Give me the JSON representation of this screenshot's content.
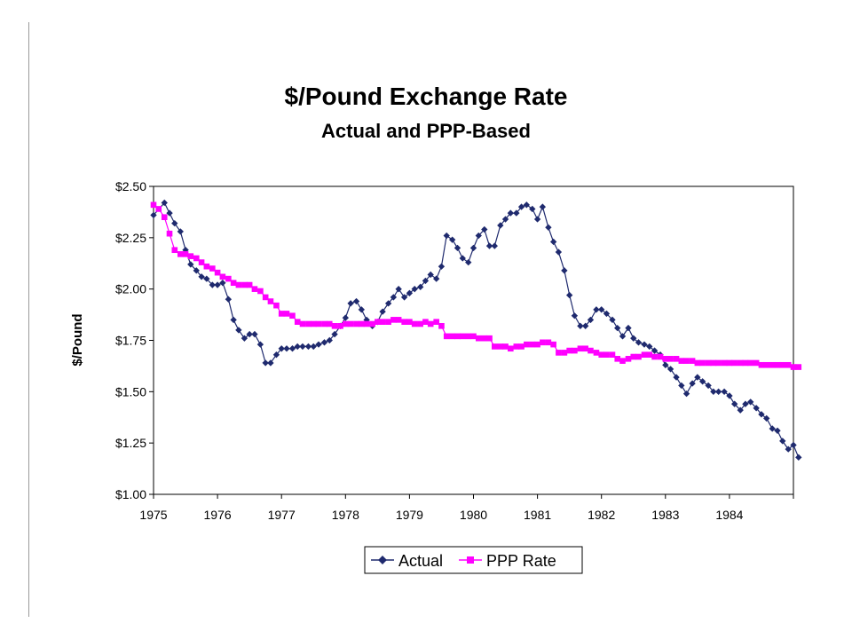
{
  "chart_data": {
    "type": "line",
    "title": "$/Pound Exchange Rate",
    "subtitle": "Actual and PPP-Based",
    "xlabel": "",
    "ylabel": "$/Pound",
    "xlim": [
      1975,
      1985
    ],
    "ylim": [
      1.0,
      2.5
    ],
    "x_ticks": [
      "1975",
      "1976",
      "1977",
      "1978",
      "1979",
      "1980",
      "1981",
      "1982",
      "1983",
      "1984"
    ],
    "y_ticks": [
      "$1.00",
      "$1.25",
      "$1.50",
      "$1.75",
      "$2.00",
      "$2.25",
      "$2.50"
    ],
    "grid": false,
    "legend": "bottom",
    "series": [
      {
        "name": "Actual",
        "color": "#1f2a6e",
        "marker": "diamond",
        "points": [
          [
            1975.0,
            2.36
          ],
          [
            1975.17,
            2.42
          ],
          [
            1975.25,
            2.37
          ],
          [
            1975.33,
            2.32
          ],
          [
            1975.42,
            2.28
          ],
          [
            1975.5,
            2.19
          ],
          [
            1975.58,
            2.12
          ],
          [
            1975.67,
            2.09
          ],
          [
            1975.75,
            2.06
          ],
          [
            1975.83,
            2.05
          ],
          [
            1975.92,
            2.02
          ],
          [
            1976.0,
            2.02
          ],
          [
            1976.08,
            2.03
          ],
          [
            1976.17,
            1.95
          ],
          [
            1976.25,
            1.85
          ],
          [
            1976.33,
            1.8
          ],
          [
            1976.42,
            1.76
          ],
          [
            1976.5,
            1.78
          ],
          [
            1976.58,
            1.78
          ],
          [
            1976.67,
            1.73
          ],
          [
            1976.75,
            1.64
          ],
          [
            1976.83,
            1.64
          ],
          [
            1976.92,
            1.68
          ],
          [
            1977.0,
            1.71
          ],
          [
            1977.08,
            1.71
          ],
          [
            1977.17,
            1.71
          ],
          [
            1977.25,
            1.72
          ],
          [
            1977.33,
            1.72
          ],
          [
            1977.42,
            1.72
          ],
          [
            1977.5,
            1.72
          ],
          [
            1977.58,
            1.73
          ],
          [
            1977.67,
            1.74
          ],
          [
            1977.75,
            1.75
          ],
          [
            1977.83,
            1.78
          ],
          [
            1977.92,
            1.82
          ],
          [
            1978.0,
            1.86
          ],
          [
            1978.08,
            1.93
          ],
          [
            1978.17,
            1.94
          ],
          [
            1978.25,
            1.9
          ],
          [
            1978.33,
            1.85
          ],
          [
            1978.42,
            1.82
          ],
          [
            1978.5,
            1.84
          ],
          [
            1978.58,
            1.89
          ],
          [
            1978.67,
            1.93
          ],
          [
            1978.75,
            1.96
          ],
          [
            1978.83,
            2.0
          ],
          [
            1978.92,
            1.96
          ],
          [
            1979.0,
            1.98
          ],
          [
            1979.08,
            2.0
          ],
          [
            1979.17,
            2.01
          ],
          [
            1979.25,
            2.04
          ],
          [
            1979.33,
            2.07
          ],
          [
            1979.42,
            2.05
          ],
          [
            1979.5,
            2.11
          ],
          [
            1979.58,
            2.26
          ],
          [
            1979.67,
            2.24
          ],
          [
            1979.75,
            2.2
          ],
          [
            1979.83,
            2.15
          ],
          [
            1979.92,
            2.13
          ],
          [
            1980.0,
            2.2
          ],
          [
            1980.08,
            2.26
          ],
          [
            1980.17,
            2.29
          ],
          [
            1980.25,
            2.21
          ],
          [
            1980.33,
            2.21
          ],
          [
            1980.42,
            2.31
          ],
          [
            1980.5,
            2.34
          ],
          [
            1980.58,
            2.37
          ],
          [
            1980.67,
            2.37
          ],
          [
            1980.75,
            2.4
          ],
          [
            1980.83,
            2.41
          ],
          [
            1980.92,
            2.39
          ],
          [
            1981.0,
            2.34
          ],
          [
            1981.08,
            2.4
          ],
          [
            1981.17,
            2.3
          ],
          [
            1981.25,
            2.23
          ],
          [
            1981.33,
            2.18
          ],
          [
            1981.42,
            2.09
          ],
          [
            1981.5,
            1.97
          ],
          [
            1981.58,
            1.87
          ],
          [
            1981.67,
            1.82
          ],
          [
            1981.75,
            1.82
          ],
          [
            1981.83,
            1.85
          ],
          [
            1981.92,
            1.9
          ],
          [
            1982.0,
            1.9
          ],
          [
            1982.08,
            1.88
          ],
          [
            1982.17,
            1.85
          ],
          [
            1982.25,
            1.81
          ],
          [
            1982.33,
            1.77
          ],
          [
            1982.42,
            1.81
          ],
          [
            1982.5,
            1.76
          ],
          [
            1982.58,
            1.74
          ],
          [
            1982.67,
            1.73
          ],
          [
            1982.75,
            1.72
          ],
          [
            1982.83,
            1.7
          ],
          [
            1982.92,
            1.68
          ],
          [
            1983.0,
            1.63
          ],
          [
            1983.08,
            1.61
          ],
          [
            1983.17,
            1.57
          ],
          [
            1983.25,
            1.53
          ],
          [
            1983.33,
            1.49
          ],
          [
            1983.42,
            1.54
          ],
          [
            1983.5,
            1.57
          ],
          [
            1983.58,
            1.55
          ],
          [
            1983.67,
            1.53
          ],
          [
            1983.75,
            1.5
          ],
          [
            1983.83,
            1.5
          ],
          [
            1983.92,
            1.5
          ],
          [
            1984.0,
            1.48
          ],
          [
            1984.08,
            1.44
          ],
          [
            1984.17,
            1.41
          ],
          [
            1984.25,
            1.44
          ],
          [
            1984.33,
            1.45
          ],
          [
            1984.42,
            1.42
          ],
          [
            1984.5,
            1.39
          ],
          [
            1984.58,
            1.37
          ],
          [
            1984.67,
            1.32
          ],
          [
            1984.75,
            1.31
          ],
          [
            1984.83,
            1.26
          ],
          [
            1984.92,
            1.22
          ],
          [
            1985.0,
            1.24
          ],
          [
            1985.08,
            1.18
          ]
        ]
      },
      {
        "name": "PPP Rate",
        "color": "#ff00ff",
        "marker": "square",
        "points": [
          [
            1975.0,
            2.41
          ],
          [
            1975.08,
            2.39
          ],
          [
            1975.17,
            2.35
          ],
          [
            1975.25,
            2.27
          ],
          [
            1975.33,
            2.19
          ],
          [
            1975.42,
            2.17
          ],
          [
            1975.5,
            2.17
          ],
          [
            1975.58,
            2.16
          ],
          [
            1975.67,
            2.15
          ],
          [
            1975.75,
            2.13
          ],
          [
            1975.83,
            2.11
          ],
          [
            1975.92,
            2.1
          ],
          [
            1976.0,
            2.08
          ],
          [
            1976.08,
            2.06
          ],
          [
            1976.17,
            2.05
          ],
          [
            1976.25,
            2.03
          ],
          [
            1976.33,
            2.02
          ],
          [
            1976.42,
            2.02
          ],
          [
            1976.5,
            2.02
          ],
          [
            1976.58,
            2.0
          ],
          [
            1976.67,
            1.99
          ],
          [
            1976.75,
            1.96
          ],
          [
            1976.83,
            1.94
          ],
          [
            1976.92,
            1.92
          ],
          [
            1977.0,
            1.88
          ],
          [
            1977.08,
            1.88
          ],
          [
            1977.17,
            1.87
          ],
          [
            1977.25,
            1.84
          ],
          [
            1977.33,
            1.83
          ],
          [
            1977.42,
            1.83
          ],
          [
            1977.5,
            1.83
          ],
          [
            1977.58,
            1.83
          ],
          [
            1977.67,
            1.83
          ],
          [
            1977.75,
            1.83
          ],
          [
            1977.83,
            1.82
          ],
          [
            1977.92,
            1.82
          ],
          [
            1978.0,
            1.83
          ],
          [
            1978.08,
            1.83
          ],
          [
            1978.17,
            1.83
          ],
          [
            1978.25,
            1.83
          ],
          [
            1978.33,
            1.83
          ],
          [
            1978.42,
            1.83
          ],
          [
            1978.5,
            1.84
          ],
          [
            1978.58,
            1.84
          ],
          [
            1978.67,
            1.84
          ],
          [
            1978.75,
            1.85
          ],
          [
            1978.83,
            1.85
          ],
          [
            1978.92,
            1.84
          ],
          [
            1979.0,
            1.84
          ],
          [
            1979.08,
            1.83
          ],
          [
            1979.17,
            1.83
          ],
          [
            1979.25,
            1.84
          ],
          [
            1979.33,
            1.83
          ],
          [
            1979.42,
            1.84
          ],
          [
            1979.5,
            1.82
          ],
          [
            1979.58,
            1.77
          ],
          [
            1979.67,
            1.77
          ],
          [
            1979.75,
            1.77
          ],
          [
            1979.83,
            1.77
          ],
          [
            1979.92,
            1.77
          ],
          [
            1980.0,
            1.77
          ],
          [
            1980.08,
            1.76
          ],
          [
            1980.17,
            1.76
          ],
          [
            1980.25,
            1.76
          ],
          [
            1980.33,
            1.72
          ],
          [
            1980.42,
            1.72
          ],
          [
            1980.5,
            1.72
          ],
          [
            1980.58,
            1.71
          ],
          [
            1980.67,
            1.72
          ],
          [
            1980.75,
            1.72
          ],
          [
            1980.83,
            1.73
          ],
          [
            1980.92,
            1.73
          ],
          [
            1981.0,
            1.73
          ],
          [
            1981.08,
            1.74
          ],
          [
            1981.17,
            1.74
          ],
          [
            1981.25,
            1.73
          ],
          [
            1981.33,
            1.69
          ],
          [
            1981.42,
            1.69
          ],
          [
            1981.5,
            1.7
          ],
          [
            1981.58,
            1.7
          ],
          [
            1981.67,
            1.71
          ],
          [
            1981.75,
            1.71
          ],
          [
            1981.83,
            1.7
          ],
          [
            1981.92,
            1.69
          ],
          [
            1982.0,
            1.68
          ],
          [
            1982.08,
            1.68
          ],
          [
            1982.17,
            1.68
          ],
          [
            1982.25,
            1.66
          ],
          [
            1982.33,
            1.65
          ],
          [
            1982.42,
            1.66
          ],
          [
            1982.5,
            1.67
          ],
          [
            1982.58,
            1.67
          ],
          [
            1982.67,
            1.68
          ],
          [
            1982.75,
            1.68
          ],
          [
            1982.83,
            1.67
          ],
          [
            1982.92,
            1.67
          ],
          [
            1983.0,
            1.66
          ],
          [
            1983.08,
            1.66
          ],
          [
            1983.17,
            1.66
          ],
          [
            1983.25,
            1.65
          ],
          [
            1983.33,
            1.65
          ],
          [
            1983.42,
            1.65
          ],
          [
            1983.5,
            1.64
          ],
          [
            1983.58,
            1.64
          ],
          [
            1983.67,
            1.64
          ],
          [
            1983.75,
            1.64
          ],
          [
            1983.83,
            1.64
          ],
          [
            1983.92,
            1.64
          ],
          [
            1984.0,
            1.64
          ],
          [
            1984.08,
            1.64
          ],
          [
            1984.17,
            1.64
          ],
          [
            1984.25,
            1.64
          ],
          [
            1984.33,
            1.64
          ],
          [
            1984.42,
            1.64
          ],
          [
            1984.5,
            1.63
          ],
          [
            1984.58,
            1.63
          ],
          [
            1984.67,
            1.63
          ],
          [
            1984.75,
            1.63
          ],
          [
            1984.83,
            1.63
          ],
          [
            1984.92,
            1.63
          ],
          [
            1985.0,
            1.62
          ],
          [
            1985.08,
            1.62
          ]
        ]
      }
    ]
  }
}
